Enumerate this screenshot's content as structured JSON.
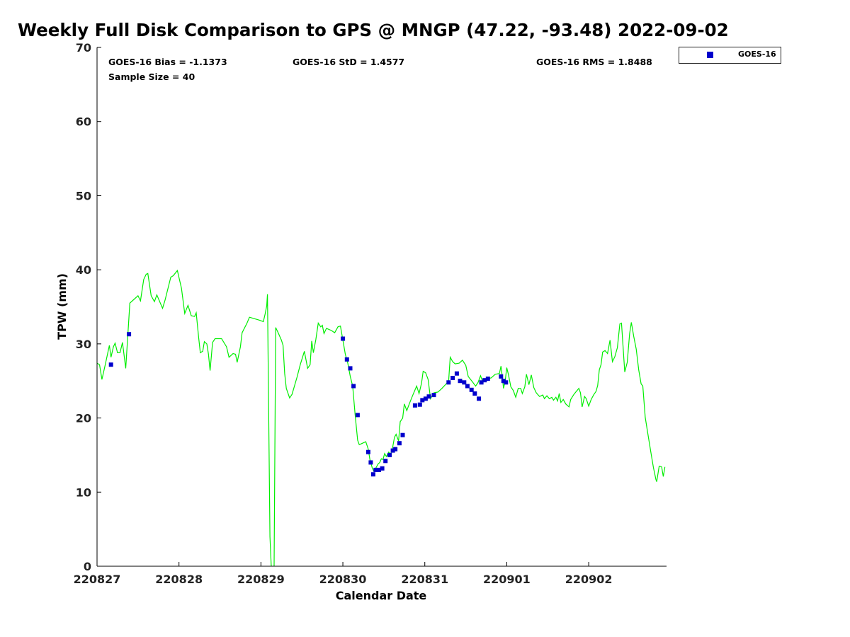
{
  "chart_data": {
    "type": "line",
    "title": "Weekly Full Disk Comparison to GPS @ MNGP (47.22, -93.48) 2022-09-02",
    "xlabel": "Calendar Date",
    "ylabel": "TPW (mm)",
    "xlim": [
      0,
      6.95
    ],
    "ylim": [
      0,
      70
    ],
    "xticks": [
      {
        "x": 0,
        "label": "220827"
      },
      {
        "x": 1,
        "label": "220828"
      },
      {
        "x": 2,
        "label": "220829"
      },
      {
        "x": 3,
        "label": "220830"
      },
      {
        "x": 4,
        "label": "220831"
      },
      {
        "x": 5,
        "label": "220901"
      },
      {
        "x": 6,
        "label": "220902"
      }
    ],
    "yticks": [
      0,
      10,
      20,
      30,
      40,
      50,
      60,
      70
    ],
    "stats": {
      "bias": "GOES-16 Bias = -1.1373",
      "std": "GOES-16 StD = 1.4577",
      "rms": "GOES-16 RMS = 1.8488",
      "sample": "Sample Size = 40"
    },
    "legend": {
      "position": "top-right",
      "entries": [
        {
          "name": "GOES-16",
          "color": "#0000cc"
        }
      ]
    },
    "series": [
      {
        "name": "GPS",
        "color": "#00ee00",
        "style": "line",
        "points": [
          [
            0.0,
            27.4
          ],
          [
            0.03,
            27.2
          ],
          [
            0.06,
            25.2
          ],
          [
            0.1,
            27.2
          ],
          [
            0.15,
            29.8
          ],
          [
            0.17,
            28.2
          ],
          [
            0.2,
            29.6
          ],
          [
            0.22,
            30.1
          ],
          [
            0.25,
            28.8
          ],
          [
            0.28,
            28.8
          ],
          [
            0.31,
            30.2
          ],
          [
            0.35,
            26.7
          ],
          [
            0.4,
            35.5
          ],
          [
            0.45,
            36.0
          ],
          [
            0.5,
            36.5
          ],
          [
            0.53,
            35.8
          ],
          [
            0.57,
            38.7
          ],
          [
            0.6,
            39.4
          ],
          [
            0.62,
            39.5
          ],
          [
            0.66,
            36.5
          ],
          [
            0.7,
            35.7
          ],
          [
            0.73,
            36.6
          ],
          [
            0.8,
            34.8
          ],
          [
            0.83,
            35.9
          ],
          [
            0.9,
            39.0
          ],
          [
            0.93,
            39.2
          ],
          [
            0.98,
            39.9
          ],
          [
            1.03,
            37.5
          ],
          [
            1.07,
            34.1
          ],
          [
            1.11,
            35.2
          ],
          [
            1.15,
            33.8
          ],
          [
            1.19,
            33.7
          ],
          [
            1.21,
            34.2
          ],
          [
            1.24,
            30.9
          ],
          [
            1.26,
            28.8
          ],
          [
            1.29,
            29.0
          ],
          [
            1.31,
            30.3
          ],
          [
            1.34,
            30.0
          ],
          [
            1.36,
            28.6
          ],
          [
            1.38,
            26.4
          ],
          [
            1.41,
            30.2
          ],
          [
            1.44,
            30.7
          ],
          [
            1.52,
            30.7
          ],
          [
            1.58,
            29.6
          ],
          [
            1.61,
            28.2
          ],
          [
            1.66,
            28.7
          ],
          [
            1.69,
            28.6
          ],
          [
            1.71,
            27.5
          ],
          [
            1.75,
            29.6
          ],
          [
            1.77,
            31.5
          ],
          [
            1.83,
            32.8
          ],
          [
            1.86,
            33.6
          ],
          [
            1.98,
            33.2
          ],
          [
            2.03,
            33.0
          ],
          [
            2.05,
            34.0
          ],
          [
            2.07,
            35.1
          ],
          [
            2.08,
            36.7
          ],
          [
            2.11,
            4.0
          ],
          [
            2.13,
            -1.0
          ],
          [
            2.15,
            0.0
          ],
          [
            2.16,
            -1.0
          ],
          [
            2.18,
            32.2
          ],
          [
            2.21,
            31.5
          ],
          [
            2.25,
            30.5
          ],
          [
            2.27,
            29.8
          ],
          [
            2.29,
            26.0
          ],
          [
            2.31,
            24.0
          ],
          [
            2.35,
            22.7
          ],
          [
            2.38,
            23.2
          ],
          [
            2.44,
            25.5
          ],
          [
            2.48,
            27.2
          ],
          [
            2.53,
            29.0
          ],
          [
            2.57,
            26.7
          ],
          [
            2.6,
            27.2
          ],
          [
            2.62,
            30.4
          ],
          [
            2.64,
            28.8
          ],
          [
            2.67,
            30.6
          ],
          [
            2.7,
            32.8
          ],
          [
            2.73,
            32.3
          ],
          [
            2.75,
            32.5
          ],
          [
            2.77,
            31.4
          ],
          [
            2.8,
            32.1
          ],
          [
            2.86,
            31.8
          ],
          [
            2.9,
            31.5
          ],
          [
            2.94,
            32.3
          ],
          [
            2.97,
            32.4
          ],
          [
            3.0,
            30.5
          ],
          [
            3.03,
            28.6
          ],
          [
            3.06,
            27.4
          ],
          [
            3.09,
            25.6
          ],
          [
            3.12,
            24.3
          ],
          [
            3.15,
            20.4
          ],
          [
            3.18,
            17.0
          ],
          [
            3.2,
            16.4
          ],
          [
            3.24,
            16.6
          ],
          [
            3.28,
            16.8
          ],
          [
            3.31,
            15.8
          ],
          [
            3.33,
            14.4
          ],
          [
            3.36,
            13.2
          ],
          [
            3.38,
            12.8
          ],
          [
            3.4,
            13.2
          ],
          [
            3.43,
            13.8
          ],
          [
            3.45,
            14.0
          ],
          [
            3.47,
            14.5
          ],
          [
            3.49,
            14.4
          ],
          [
            3.51,
            15.2
          ],
          [
            3.53,
            14.8
          ],
          [
            3.56,
            15.4
          ],
          [
            3.58,
            15.1
          ],
          [
            3.6,
            15.6
          ],
          [
            3.63,
            17.4
          ],
          [
            3.65,
            17.8
          ],
          [
            3.68,
            16.9
          ],
          [
            3.7,
            19.5
          ],
          [
            3.73,
            20.0
          ],
          [
            3.75,
            21.9
          ],
          [
            3.78,
            21.0
          ],
          [
            3.81,
            21.9
          ],
          [
            3.85,
            23.0
          ],
          [
            3.9,
            24.3
          ],
          [
            3.93,
            23.3
          ],
          [
            3.96,
            24.7
          ],
          [
            3.98,
            26.3
          ],
          [
            4.01,
            26.1
          ],
          [
            4.04,
            25.2
          ],
          [
            4.07,
            22.6
          ],
          [
            4.11,
            23.4
          ],
          [
            4.16,
            23.5
          ],
          [
            4.21,
            24.0
          ],
          [
            4.26,
            24.6
          ],
          [
            4.29,
            24.9
          ],
          [
            4.31,
            28.2
          ],
          [
            4.34,
            27.6
          ],
          [
            4.37,
            27.3
          ],
          [
            4.42,
            27.4
          ],
          [
            4.46,
            27.8
          ],
          [
            4.5,
            27.1
          ],
          [
            4.53,
            25.6
          ],
          [
            4.58,
            24.9
          ],
          [
            4.62,
            24.3
          ],
          [
            4.65,
            24.8
          ],
          [
            4.68,
            25.7
          ],
          [
            4.71,
            24.8
          ],
          [
            4.73,
            25.3
          ],
          [
            4.76,
            25.3
          ],
          [
            4.81,
            25.4
          ],
          [
            4.86,
            25.9
          ],
          [
            4.91,
            26.0
          ],
          [
            4.93,
            27.0
          ],
          [
            4.95,
            25.2
          ],
          [
            4.96,
            24.0
          ],
          [
            4.98,
            24.9
          ],
          [
            5.0,
            26.8
          ],
          [
            5.02,
            25.9
          ],
          [
            5.05,
            24.2
          ],
          [
            5.08,
            23.7
          ],
          [
            5.11,
            22.8
          ],
          [
            5.14,
            24.0
          ],
          [
            5.17,
            24.0
          ],
          [
            5.19,
            23.3
          ],
          [
            5.22,
            24.2
          ],
          [
            5.24,
            25.9
          ],
          [
            5.27,
            24.5
          ],
          [
            5.3,
            25.8
          ],
          [
            5.33,
            24.1
          ],
          [
            5.36,
            23.4
          ],
          [
            5.4,
            22.9
          ],
          [
            5.44,
            23.1
          ],
          [
            5.46,
            22.6
          ],
          [
            5.49,
            23.0
          ],
          [
            5.52,
            22.6
          ],
          [
            5.55,
            22.8
          ],
          [
            5.57,
            22.4
          ],
          [
            5.6,
            22.8
          ],
          [
            5.62,
            22.3
          ],
          [
            5.64,
            23.3
          ],
          [
            5.66,
            22.1
          ],
          [
            5.69,
            22.5
          ],
          [
            5.72,
            21.9
          ],
          [
            5.76,
            21.5
          ],
          [
            5.78,
            22.5
          ],
          [
            5.82,
            23.2
          ],
          [
            5.85,
            23.6
          ],
          [
            5.88,
            24.0
          ],
          [
            5.9,
            23.4
          ],
          [
            5.92,
            21.5
          ],
          [
            5.95,
            22.9
          ],
          [
            5.97,
            22.6
          ],
          [
            6.0,
            21.6
          ],
          [
            6.03,
            22.5
          ],
          [
            6.06,
            23.1
          ],
          [
            6.09,
            23.6
          ],
          [
            6.11,
            24.4
          ],
          [
            6.13,
            26.5
          ],
          [
            6.15,
            27.2
          ],
          [
            6.17,
            28.9
          ],
          [
            6.2,
            29.1
          ],
          [
            6.23,
            28.7
          ],
          [
            6.26,
            30.5
          ],
          [
            6.29,
            27.6
          ],
          [
            6.32,
            28.3
          ],
          [
            6.35,
            29.5
          ],
          [
            6.38,
            32.7
          ],
          [
            6.4,
            32.8
          ],
          [
            6.44,
            26.2
          ],
          [
            6.47,
            27.5
          ],
          [
            6.5,
            31.4
          ],
          [
            6.52,
            32.9
          ],
          [
            6.55,
            31.0
          ],
          [
            6.58,
            29.3
          ],
          [
            6.61,
            26.5
          ],
          [
            6.64,
            24.6
          ],
          [
            6.66,
            24.3
          ],
          [
            6.69,
            20.1
          ],
          [
            6.72,
            18.0
          ],
          [
            6.76,
            15.3
          ],
          [
            6.79,
            13.3
          ],
          [
            6.82,
            11.7
          ],
          [
            6.83,
            11.4
          ],
          [
            6.86,
            13.5
          ],
          [
            6.89,
            13.4
          ],
          [
            6.91,
            12.1
          ],
          [
            6.93,
            13.4
          ]
        ]
      },
      {
        "name": "GOES-16",
        "color": "#0000cc",
        "style": "marker",
        "points": [
          [
            0.17,
            27.2
          ],
          [
            0.39,
            31.3
          ],
          [
            3.0,
            30.7
          ],
          [
            3.05,
            27.9
          ],
          [
            3.09,
            26.7
          ],
          [
            3.13,
            24.3
          ],
          [
            3.18,
            20.4
          ],
          [
            3.31,
            15.4
          ],
          [
            3.34,
            14.0
          ],
          [
            3.37,
            12.4
          ],
          [
            3.4,
            13.0
          ],
          [
            3.44,
            13.0
          ],
          [
            3.48,
            13.2
          ],
          [
            3.52,
            14.2
          ],
          [
            3.57,
            15.0
          ],
          [
            3.61,
            15.6
          ],
          [
            3.64,
            15.8
          ],
          [
            3.69,
            16.6
          ],
          [
            3.73,
            17.7
          ],
          [
            3.88,
            21.7
          ],
          [
            3.94,
            21.8
          ],
          [
            3.97,
            22.4
          ],
          [
            4.01,
            22.6
          ],
          [
            4.05,
            22.9
          ],
          [
            4.11,
            23.1
          ],
          [
            4.29,
            24.8
          ],
          [
            4.34,
            25.4
          ],
          [
            4.39,
            26.0
          ],
          [
            4.43,
            25.0
          ],
          [
            4.48,
            24.8
          ],
          [
            4.52,
            24.3
          ],
          [
            4.57,
            23.8
          ],
          [
            4.61,
            23.3
          ],
          [
            4.66,
            22.6
          ],
          [
            4.69,
            24.8
          ],
          [
            4.73,
            25.1
          ],
          [
            4.77,
            25.3
          ],
          [
            4.93,
            25.6
          ],
          [
            4.96,
            25.0
          ],
          [
            4.99,
            24.8
          ]
        ]
      }
    ]
  }
}
